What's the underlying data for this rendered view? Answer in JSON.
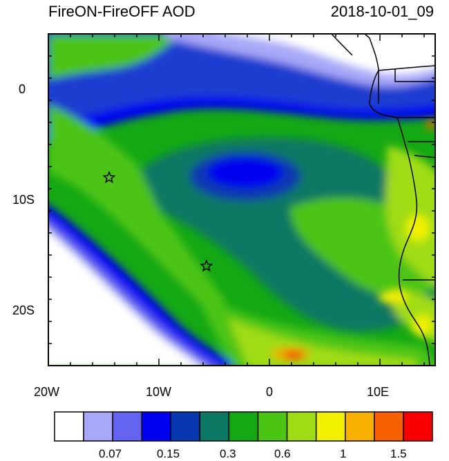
{
  "title": "FireON-FireOFF AOD",
  "timestamp": "2018-10-01_09",
  "map": {
    "lon_range": [
      -20,
      15
    ],
    "lat_range": [
      -25,
      5
    ],
    "x_ticks": [
      "20W",
      "10W",
      "0",
      "10E"
    ],
    "y_ticks": [
      "0",
      "10S",
      "20S"
    ],
    "markers": [
      {
        "name": "star-marker-1",
        "lon": -14.5,
        "lat": -8
      },
      {
        "name": "star-marker-2",
        "lon": -5.7,
        "lat": -16
      }
    ]
  },
  "colorbar": {
    "colors": [
      "#ffffff",
      "#a8a8f8",
      "#6464f0",
      "#0000f0",
      "#0838b0",
      "#0c7864",
      "#14a814",
      "#4cc414",
      "#a0dc14",
      "#f0f000",
      "#f8b000",
      "#f86000",
      "#f80000"
    ],
    "labels": [
      "0.07",
      "0.15",
      "0.3",
      "0.6",
      "1",
      "1.5"
    ]
  }
}
